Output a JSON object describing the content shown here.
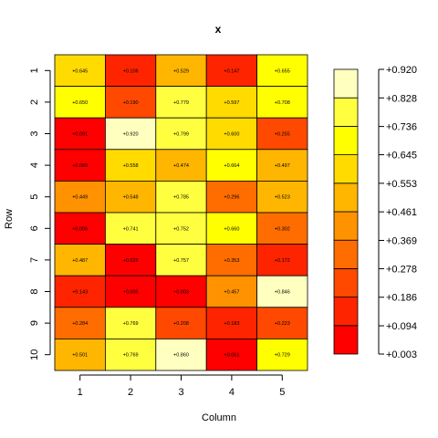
{
  "chart_data": {
    "type": "heatmap",
    "title": "x",
    "xlabel": "Column",
    "ylabel": "Row",
    "columns": [
      "1",
      "2",
      "3",
      "4",
      "5"
    ],
    "rows": [
      "1",
      "2",
      "3",
      "4",
      "5",
      "6",
      "7",
      "8",
      "9",
      "10"
    ],
    "values": [
      [
        0.645,
        0.106,
        0.529,
        0.147,
        0.655
      ],
      [
        0.65,
        0.19,
        0.779,
        0.597,
        0.708
      ],
      [
        0.091,
        0.92,
        0.799,
        0.6,
        0.255
      ],
      [
        0.089,
        0.558,
        0.474,
        0.664,
        0.497
      ],
      [
        0.449,
        0.548,
        0.785,
        0.296,
        0.523
      ],
      [
        0.006,
        0.741,
        0.752,
        0.66,
        0.302
      ],
      [
        0.487,
        0.025,
        0.757,
        0.353,
        0.172
      ],
      [
        0.143,
        0.005,
        0.003,
        0.457,
        0.846
      ],
      [
        0.284,
        0.769,
        0.208,
        0.183,
        0.223
      ],
      [
        0.501,
        0.769,
        0.86,
        0.061,
        0.729
      ]
    ],
    "cell_labels": [
      [
        "+0.645",
        "+0.106",
        "+0.529",
        "+0.147",
        "+0.655"
      ],
      [
        "+0.650",
        "+0.190",
        "+0.779",
        "+0.597",
        "+0.708"
      ],
      [
        "+0.091",
        "+0.920",
        "+0.799",
        "+0.600",
        "+0.255"
      ],
      [
        "+0.089",
        "+0.558",
        "+0.474",
        "+0.664",
        "+0.497"
      ],
      [
        "+0.449",
        "+0.548",
        "+0.785",
        "+0.296",
        "+0.523"
      ],
      [
        "+0.006",
        "+0.741",
        "+0.752",
        "+0.660",
        "+0.302"
      ],
      [
        "+0.487",
        "+0.025",
        "+0.757",
        "+0.353",
        "+0.172"
      ],
      [
        "+0.143",
        "+0.005",
        "+0.003",
        "+0.457",
        "+0.846"
      ],
      [
        "+0.284",
        "+0.769",
        "+0.208",
        "+0.183",
        "+0.223"
      ],
      [
        "+0.501",
        "+0.769",
        "+0.860",
        "+0.061",
        "+0.729"
      ]
    ],
    "color_scale": {
      "breaks": [
        0.003,
        0.094,
        0.186,
        0.278,
        0.369,
        0.461,
        0.553,
        0.645,
        0.736,
        0.828,
        0.92
      ],
      "tick_labels": [
        "+0.003",
        "+0.094",
        "+0.186",
        "+0.278",
        "+0.369",
        "+0.461",
        "+0.553",
        "+0.645",
        "+0.736",
        "+0.828",
        "+0.920"
      ],
      "colors": [
        "#FF0000",
        "#FF2400",
        "#FF4900",
        "#FF6D00",
        "#FF9200",
        "#FFB600",
        "#FFDB00",
        "#FFFF00",
        "#FFFF40",
        "#FFFFBF"
      ]
    },
    "cell_border_color": "#000000",
    "grid": false,
    "legend": "right"
  }
}
